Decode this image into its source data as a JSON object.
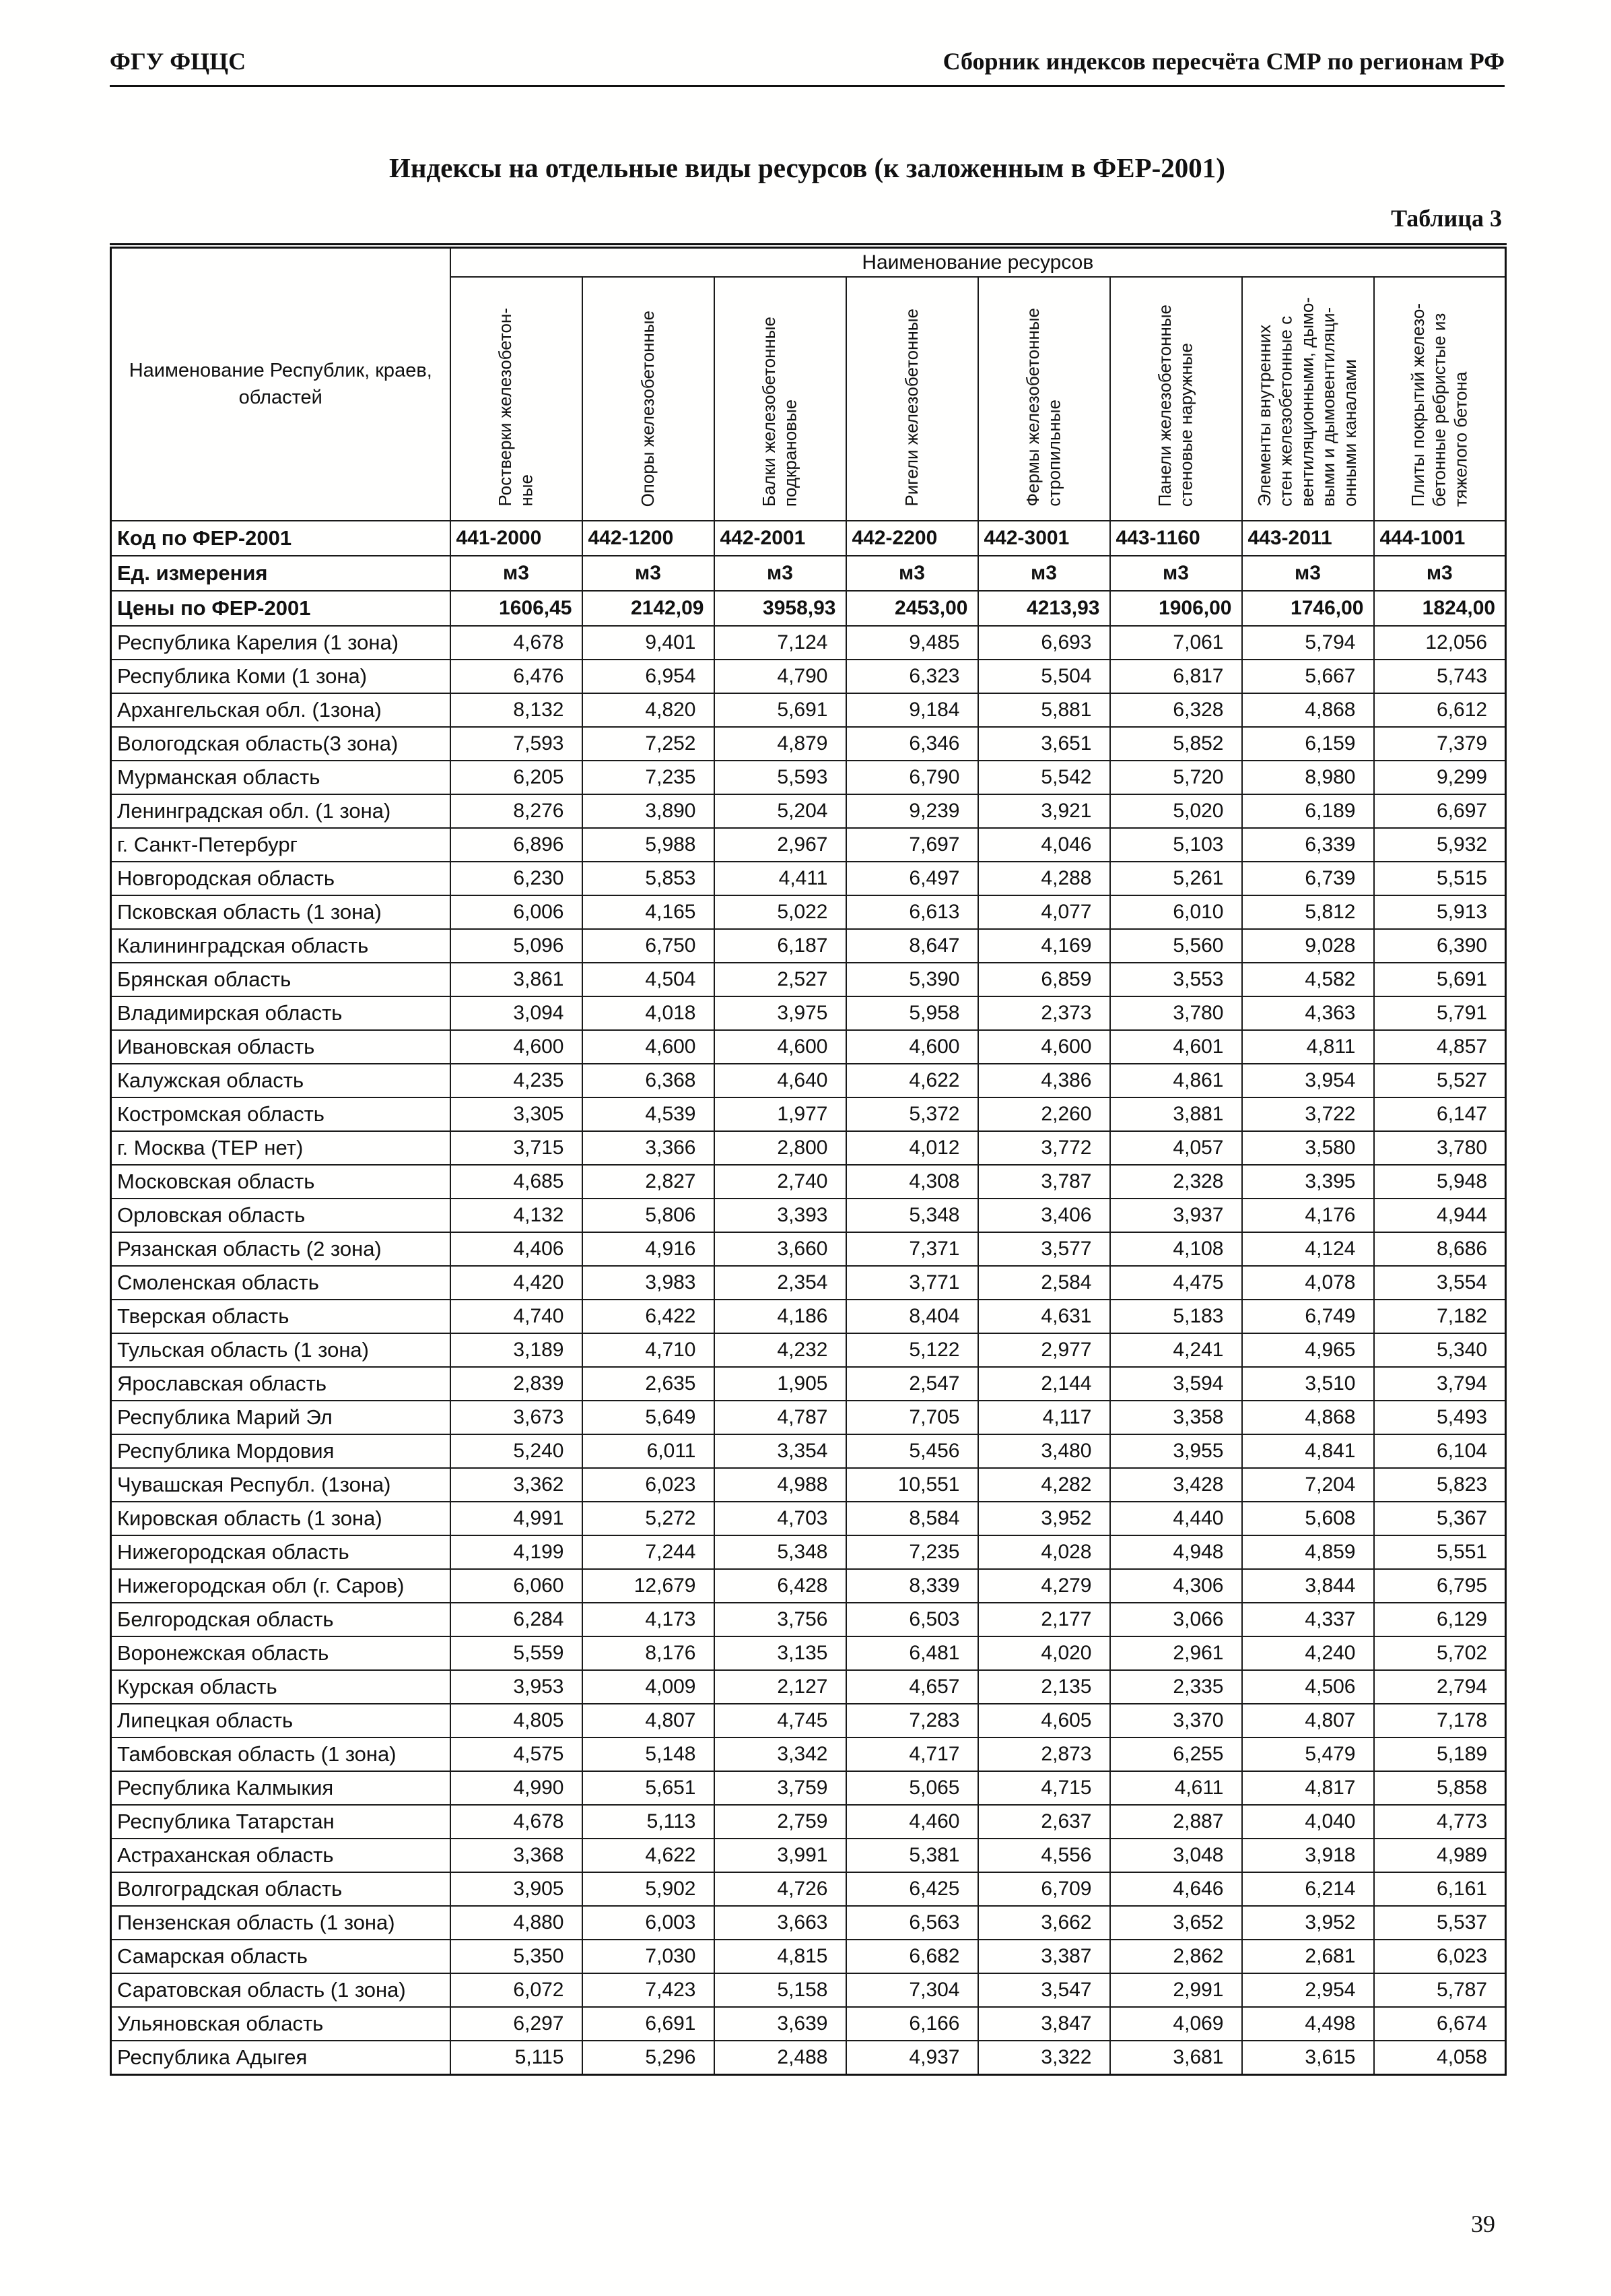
{
  "document": {
    "header_left": "ФГУ ФЦЦС",
    "header_right": "Сборник индексов пересчёта СМР по регионам РФ",
    "title": "Индексы на отдельные виды ресурсов (к заложенным в ФЕР-2001)",
    "table_caption": "Таблица 3",
    "page_number": "39"
  },
  "table": {
    "region_header": "Наименование Республик, краев,\nобластей",
    "resources_header": "Наименование ресурсов",
    "columns": [
      "Ростверки железобетон-\nные",
      "Опоры железобетонные",
      "Балки железобетонные\nподкрановые",
      "Ригели железобетонные",
      "Фермы железобетонные\nстропильные",
      "Панели железобетонные\nстеновые наружные",
      "Элементы внутренних\nстен железобетонные с\nвентиляционными, дымо-\nвыми и дымовентиляци-\nонными каналами",
      "Плиты покрытий железо-\nбетонные ребристые из\nтяжелого бетона"
    ],
    "meta_rows": [
      {
        "label": "Код по ФЕР-2001",
        "align": "left",
        "values": [
          "441-2000",
          "442-1200",
          "442-2001",
          "442-2200",
          "442-3001",
          "443-1160",
          "443-2011",
          "444-1001"
        ]
      },
      {
        "label": "Ед. измерения",
        "align": "center",
        "values": [
          "м3",
          "м3",
          "м3",
          "м3",
          "м3",
          "м3",
          "м3",
          "м3"
        ]
      },
      {
        "label": "Цены по ФЕР-2001",
        "align": "right",
        "values": [
          "1606,45",
          "2142,09",
          "3958,93",
          "2453,00",
          "4213,93",
          "1906,00",
          "1746,00",
          "1824,00"
        ]
      }
    ],
    "rows": [
      {
        "label": "Республика Карелия (1 зона)",
        "values": [
          "4,678",
          "9,401",
          "7,124",
          "9,485",
          "6,693",
          "7,061",
          "5,794",
          "12,056"
        ]
      },
      {
        "label": "Республика Коми (1 зона)",
        "values": [
          "6,476",
          "6,954",
          "4,790",
          "6,323",
          "5,504",
          "6,817",
          "5,667",
          "5,743"
        ]
      },
      {
        "label": "Архангельская обл. (1зона)",
        "values": [
          "8,132",
          "4,820",
          "5,691",
          "9,184",
          "5,881",
          "6,328",
          "4,868",
          "6,612"
        ]
      },
      {
        "label": "Вологодская область(3 зона)",
        "values": [
          "7,593",
          "7,252",
          "4,879",
          "6,346",
          "3,651",
          "5,852",
          "6,159",
          "7,379"
        ]
      },
      {
        "label": "Мурманская область",
        "values": [
          "6,205",
          "7,235",
          "5,593",
          "6,790",
          "5,542",
          "5,720",
          "8,980",
          "9,299"
        ]
      },
      {
        "label": "Ленинградская обл. (1 зона)",
        "values": [
          "8,276",
          "3,890",
          "5,204",
          "9,239",
          "3,921",
          "5,020",
          "6,189",
          "6,697"
        ]
      },
      {
        "label": "г. Санкт-Петербург",
        "values": [
          "6,896",
          "5,988",
          "2,967",
          "7,697",
          "4,046",
          "5,103",
          "6,339",
          "5,932"
        ]
      },
      {
        "label": "Новгородская область",
        "values": [
          "6,230",
          "5,853",
          "4,411",
          "6,497",
          "4,288",
          "5,261",
          "6,739",
          "5,515"
        ]
      },
      {
        "label": "Псковская область (1 зона)",
        "values": [
          "6,006",
          "4,165",
          "5,022",
          "6,613",
          "4,077",
          "6,010",
          "5,812",
          "5,913"
        ]
      },
      {
        "label": "Калининградская область",
        "values": [
          "5,096",
          "6,750",
          "6,187",
          "8,647",
          "4,169",
          "5,560",
          "9,028",
          "6,390"
        ]
      },
      {
        "label": "Брянская область",
        "values": [
          "3,861",
          "4,504",
          "2,527",
          "5,390",
          "6,859",
          "3,553",
          "4,582",
          "5,691"
        ]
      },
      {
        "label": "Владимирская область",
        "values": [
          "3,094",
          "4,018",
          "3,975",
          "5,958",
          "2,373",
          "3,780",
          "4,363",
          "5,791"
        ]
      },
      {
        "label": "Ивановская область",
        "values": [
          "4,600",
          "4,600",
          "4,600",
          "4,600",
          "4,600",
          "4,601",
          "4,811",
          "4,857"
        ]
      },
      {
        "label": "Калужская область",
        "values": [
          "4,235",
          "6,368",
          "4,640",
          "4,622",
          "4,386",
          "4,861",
          "3,954",
          "5,527"
        ]
      },
      {
        "label": "Костромская область",
        "values": [
          "3,305",
          "4,539",
          "1,977",
          "5,372",
          "2,260",
          "3,881",
          "3,722",
          "6,147"
        ]
      },
      {
        "label": "г. Москва (ТЕР нет)",
        "values": [
          "3,715",
          "3,366",
          "2,800",
          "4,012",
          "3,772",
          "4,057",
          "3,580",
          "3,780"
        ]
      },
      {
        "label": "Московская  область",
        "values": [
          "4,685",
          "2,827",
          "2,740",
          "4,308",
          "3,787",
          "2,328",
          "3,395",
          "5,948"
        ]
      },
      {
        "label": "Орловская область",
        "values": [
          "4,132",
          "5,806",
          "3,393",
          "5,348",
          "3,406",
          "3,937",
          "4,176",
          "4,944"
        ]
      },
      {
        "label": "Рязанская область (2 зона)",
        "values": [
          "4,406",
          "4,916",
          "3,660",
          "7,371",
          "3,577",
          "4,108",
          "4,124",
          "8,686"
        ]
      },
      {
        "label": "Смоленская область",
        "values": [
          "4,420",
          "3,983",
          "2,354",
          "3,771",
          "2,584",
          "4,475",
          "4,078",
          "3,554"
        ]
      },
      {
        "label": "Тверская область",
        "values": [
          "4,740",
          "6,422",
          "4,186",
          "8,404",
          "4,631",
          "5,183",
          "6,749",
          "7,182"
        ]
      },
      {
        "label": "Тульская область (1 зона)",
        "values": [
          "3,189",
          "4,710",
          "4,232",
          "5,122",
          "2,977",
          "4,241",
          "4,965",
          "5,340"
        ]
      },
      {
        "label": "Ярославская область",
        "values": [
          "2,839",
          "2,635",
          "1,905",
          "2,547",
          "2,144",
          "3,594",
          "3,510",
          "3,794"
        ]
      },
      {
        "label": "Республика Марий Эл",
        "values": [
          "3,673",
          "5,649",
          "4,787",
          "7,705",
          "4,117",
          "3,358",
          "4,868",
          "5,493"
        ]
      },
      {
        "label": "Республика Мордовия",
        "values": [
          "5,240",
          "6,011",
          "3,354",
          "5,456",
          "3,480",
          "3,955",
          "4,841",
          "6,104"
        ]
      },
      {
        "label": "Чувашская Республ. (1зона)",
        "values": [
          "3,362",
          "6,023",
          "4,988",
          "10,551",
          "4,282",
          "3,428",
          "7,204",
          "5,823"
        ]
      },
      {
        "label": "Кировская область (1 зона)",
        "values": [
          "4,991",
          "5,272",
          "4,703",
          "8,584",
          "3,952",
          "4,440",
          "5,608",
          "5,367"
        ]
      },
      {
        "label": "Нижегородская область",
        "values": [
          "4,199",
          "7,244",
          "5,348",
          "7,235",
          "4,028",
          "4,948",
          "4,859",
          "5,551"
        ]
      },
      {
        "label": "Нижегородская обл (г. Саров)",
        "values": [
          "6,060",
          "12,679",
          "6,428",
          "8,339",
          "4,279",
          "4,306",
          "3,844",
          "6,795"
        ]
      },
      {
        "label": "Белгородская область",
        "values": [
          "6,284",
          "4,173",
          "3,756",
          "6,503",
          "2,177",
          "3,066",
          "4,337",
          "6,129"
        ]
      },
      {
        "label": "Воронежская область",
        "values": [
          "5,559",
          "8,176",
          "3,135",
          "6,481",
          "4,020",
          "2,961",
          "4,240",
          "5,702"
        ]
      },
      {
        "label": "Курская область",
        "values": [
          "3,953",
          "4,009",
          "2,127",
          "4,657",
          "2,135",
          "2,335",
          "4,506",
          "2,794"
        ]
      },
      {
        "label": "Липецкая область",
        "values": [
          "4,805",
          "4,807",
          "4,745",
          "7,283",
          "4,605",
          "3,370",
          "4,807",
          "7,178"
        ]
      },
      {
        "label": "Тамбовская область (1 зона)",
        "values": [
          "4,575",
          "5,148",
          "3,342",
          "4,717",
          "2,873",
          "6,255",
          "5,479",
          "5,189"
        ]
      },
      {
        "label": "Республика Калмыкия",
        "values": [
          "4,990",
          "5,651",
          "3,759",
          "5,065",
          "4,715",
          "4,611",
          "4,817",
          "5,858"
        ]
      },
      {
        "label": "Республика Татарстан",
        "values": [
          "4,678",
          "5,113",
          "2,759",
          "4,460",
          "2,637",
          "2,887",
          "4,040",
          "4,773"
        ]
      },
      {
        "label": "Астраханская область",
        "values": [
          "3,368",
          "4,622",
          "3,991",
          "5,381",
          "4,556",
          "3,048",
          "3,918",
          "4,989"
        ]
      },
      {
        "label": "Волгоградская область",
        "values": [
          "3,905",
          "5,902",
          "4,726",
          "6,425",
          "6,709",
          "4,646",
          "6,214",
          "6,161"
        ]
      },
      {
        "label": "Пензенская область (1 зона)",
        "values": [
          "4,880",
          "6,003",
          "3,663",
          "6,563",
          "3,662",
          "3,652",
          "3,952",
          "5,537"
        ]
      },
      {
        "label": "Самарская область",
        "values": [
          "5,350",
          "7,030",
          "4,815",
          "6,682",
          "3,387",
          "2,862",
          "2,681",
          "6,023"
        ]
      },
      {
        "label": "Саратовская область (1 зона)",
        "values": [
          "6,072",
          "7,423",
          "5,158",
          "7,304",
          "3,547",
          "2,991",
          "2,954",
          "5,787"
        ]
      },
      {
        "label": "Ульяновская область",
        "values": [
          "6,297",
          "6,691",
          "3,639",
          "6,166",
          "3,847",
          "4,069",
          "4,498",
          "6,674"
        ]
      },
      {
        "label": "Республика Адыгея",
        "values": [
          "5,115",
          "5,296",
          "2,488",
          "4,937",
          "3,322",
          "3,681",
          "3,615",
          "4,058"
        ]
      }
    ]
  }
}
